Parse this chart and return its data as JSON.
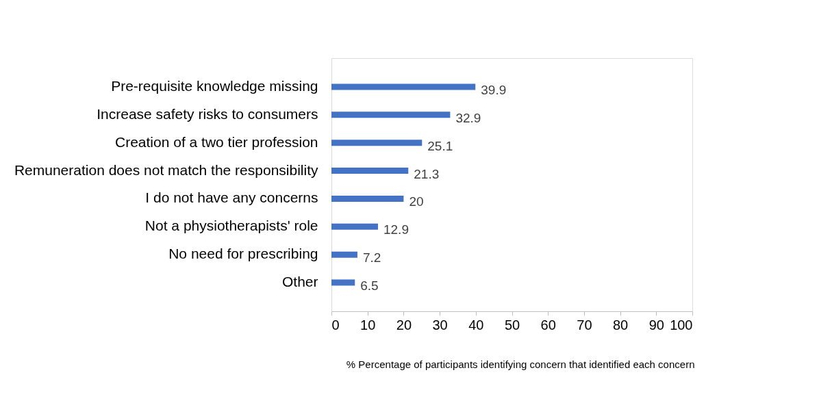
{
  "chart_data": {
    "type": "bar",
    "orientation": "horizontal",
    "categories": [
      "Pre-requisite knowledge missing",
      "Increase safety risks to consumers",
      "Creation of a two tier profession",
      "Remuneration does not match the responsibility",
      "I do not have any concerns",
      "Not a physiotherapists' role",
      "No need for prescribing",
      "Other"
    ],
    "values": [
      39.9,
      32.9,
      25.1,
      21.3,
      20,
      12.9,
      7.2,
      6.5
    ],
    "color": "#4472c4",
    "xlim": [
      0,
      100
    ],
    "xticks": [
      0,
      10,
      20,
      30,
      40,
      50,
      60,
      70,
      80,
      90,
      100
    ],
    "data_labels": true,
    "grid": false,
    "xlabel": "% Percentage of participants identifying concern that identified each concern"
  }
}
